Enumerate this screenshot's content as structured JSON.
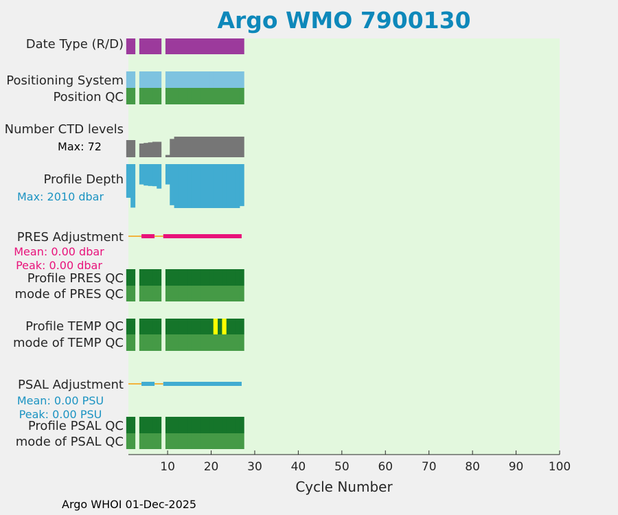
{
  "chart_data": {
    "type": "timeline",
    "title": "Argo WMO 7900130",
    "xlabel": "Cycle Number",
    "xlim": [
      1,
      100
    ],
    "xticks": [
      10,
      20,
      30,
      40,
      50,
      60,
      70,
      80,
      90,
      100
    ],
    "footer": "Argo WHOI 01-Dec-2025",
    "colors": {
      "plot_bg": "#E3F8DE",
      "figure_bg": "#F0F0F0",
      "title": "#0E88BA",
      "date_type": "#9C3A9C",
      "positioning": "#7EC3E0",
      "qc_good": "#459A46",
      "qc_profile_A": "#15752A",
      "ctd": "#767676",
      "depth": "#41ACD1",
      "pres_adj": "#E8127A",
      "psal_adj": "#41ACD1",
      "adj_zero": "#F2B33D",
      "qc_flag": "#FFFF00"
    },
    "cycles": [
      1,
      2,
      4,
      5,
      6,
      7,
      8,
      10,
      11,
      12,
      13,
      14,
      15,
      16,
      17,
      18,
      19,
      20,
      21,
      22,
      23,
      24,
      25,
      26,
      27
    ],
    "rows": [
      {
        "key": "date_type",
        "label": "Date Type (R/D)",
        "color": "date_type"
      },
      {
        "key": "positioning",
        "label": "Positioning System",
        "color": "positioning"
      },
      {
        "key": "position_qc",
        "label": "Position QC",
        "color": "qc_good"
      },
      {
        "key": "ctd_levels",
        "label": "Number CTD levels",
        "note": "Max: 72",
        "note_color": "#000000",
        "max": 72,
        "values": [
          60,
          60,
          48,
          50,
          52,
          54,
          54,
          8,
          64,
          72,
          72,
          72,
          72,
          72,
          72,
          72,
          72,
          72,
          72,
          72,
          72,
          72,
          72,
          72,
          72
        ]
      },
      {
        "key": "profile_depth",
        "label": "Profile Depth",
        "note": "Max: 2010 dbar",
        "note_color": "#1B93C2",
        "max": 2010,
        "values": [
          1540,
          1990,
          930,
          980,
          1000,
          1010,
          1120,
          930,
          1880,
          2010,
          2010,
          2010,
          2010,
          2010,
          2010,
          2010,
          2010,
          2010,
          2010,
          2010,
          2010,
          2010,
          2010,
          2010,
          1920
        ]
      },
      {
        "key": "pres_adj",
        "label": "PRES Adjustment",
        "notes": [
          "Mean: 0.00 dbar",
          "Peak: 0.00 dbar"
        ],
        "note_color": "#E8127A",
        "segments": [
          {
            "from": 1,
            "to": 4,
            "kind": "zero"
          },
          {
            "from": 4,
            "to": 7,
            "kind": "adj"
          },
          {
            "from": 7,
            "to": 9,
            "kind": "zero"
          },
          {
            "from": 9,
            "to": 27,
            "kind": "adj"
          }
        ]
      },
      {
        "key": "profile_pres_qc",
        "label": "Profile PRES QC",
        "color": "qc_profile_A"
      },
      {
        "key": "mode_pres_qc",
        "label": "mode of PRES QC",
        "color": "qc_good"
      },
      {
        "key": "profile_temp_qc",
        "label": "Profile TEMP QC",
        "color": "qc_profile_A",
        "flagged_cycles": [
          21,
          23
        ]
      },
      {
        "key": "mode_temp_qc",
        "label": "mode of TEMP QC",
        "color": "qc_good"
      },
      {
        "key": "psal_adj",
        "label": "PSAL Adjustment",
        "notes": [
          "Mean: 0.00 PSU",
          "Peak: 0.00 PSU"
        ],
        "note_color": "#1B93C2",
        "segments": [
          {
            "from": 1,
            "to": 4,
            "kind": "zero"
          },
          {
            "from": 4,
            "to": 7,
            "kind": "adj"
          },
          {
            "from": 7,
            "to": 9,
            "kind": "zero"
          },
          {
            "from": 9,
            "to": 27,
            "kind": "adj"
          }
        ]
      },
      {
        "key": "profile_psal_qc",
        "label": "Profile PSAL QC",
        "color": "qc_profile_A"
      },
      {
        "key": "mode_psal_qc",
        "label": "mode of PSAL QC",
        "color": "qc_good"
      }
    ]
  }
}
